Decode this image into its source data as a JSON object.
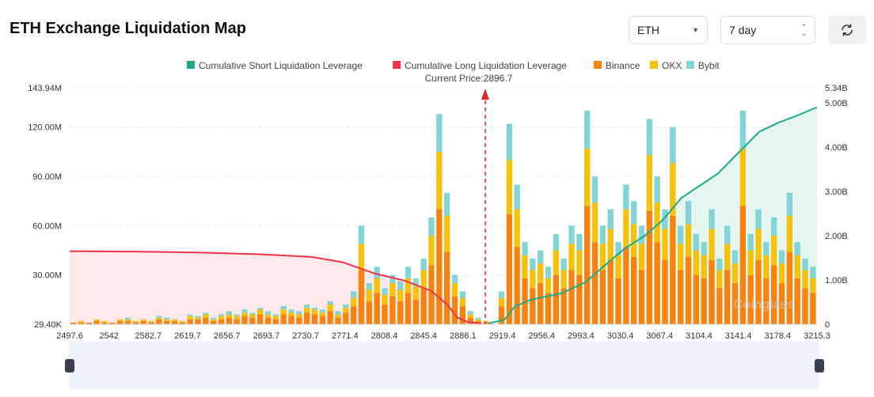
{
  "header": {
    "title": "ETH Exchange Liquidation Map",
    "coin_select": "ETH",
    "range_select": "7 day",
    "refresh_icon": "refresh-icon"
  },
  "chart_data": {
    "type": "bar",
    "legend": [
      "Cumulative Short Liquidation Leverage",
      "Cumulative Long Liquidation Leverage",
      "Binance",
      "OKX",
      "Bybit"
    ],
    "legend_position": "top",
    "colors": {
      "short": "#1fa98a",
      "long": "#f0334a",
      "binance": "#f7820d",
      "okx": "#f5c10b",
      "bybit": "#83d4d6"
    },
    "annotation": "Current Price:2896.7",
    "current_price": 2896.7,
    "x_ticks": [
      "2497.6",
      "2542",
      "2582.7",
      "2619.7",
      "2656.7",
      "2693.7",
      "2730.7",
      "2771.4",
      "2808.4",
      "2845.4",
      "2886.1",
      "2919.4",
      "2956.4",
      "2993.4",
      "3030.4",
      "3067.4",
      "3104.4",
      "3141.4",
      "3178.4",
      "3215.3"
    ],
    "xlim": [
      2497.6,
      3215.3
    ],
    "left_ticks": [
      "29.40K",
      "30.00M",
      "60.00M",
      "90.00M",
      "120.00M",
      "143.94M"
    ],
    "left_tick_values": [
      0,
      30,
      60,
      90,
      120,
      143.94
    ],
    "right_ticks": [
      "0",
      "1.00B",
      "2.00B",
      "3.00B",
      "4.00B",
      "5.00B",
      "5.34B"
    ],
    "right_tick_values": [
      0,
      1,
      2,
      3,
      4,
      5,
      5.34
    ],
    "binance": [
      1,
      1,
      1,
      2,
      1,
      1,
      2,
      2,
      1,
      2,
      1,
      3,
      2,
      2,
      1,
      3,
      3,
      4,
      2,
      3,
      4,
      3,
      5,
      4,
      6,
      4,
      3,
      6,
      5,
      4,
      7,
      6,
      5,
      8,
      4,
      7,
      11,
      33,
      14,
      19,
      12,
      17,
      14,
      19,
      15,
      22,
      36,
      70,
      44,
      17,
      11,
      4,
      2,
      1,
      0,
      11,
      67,
      47,
      28,
      22,
      25,
      19,
      30,
      22,
      33,
      30,
      72,
      50,
      33,
      39,
      28,
      47,
      41,
      33,
      69,
      50,
      39,
      66,
      33,
      41,
      30,
      28,
      39,
      22,
      33,
      25,
      72,
      30,
      39,
      28,
      36,
      25,
      44,
      28,
      22,
      19
    ],
    "okx": [
      0,
      1,
      0,
      1,
      1,
      0,
      1,
      1,
      1,
      1,
      1,
      1,
      1,
      1,
      1,
      2,
      1,
      2,
      1,
      2,
      2,
      2,
      2,
      2,
      3,
      2,
      2,
      3,
      2,
      2,
      3,
      3,
      2,
      4,
      2,
      3,
      5,
      16,
      7,
      9,
      6,
      8,
      7,
      9,
      8,
      11,
      18,
      35,
      22,
      8,
      5,
      2,
      1,
      1,
      0,
      5,
      33,
      23,
      14,
      11,
      12,
      9,
      15,
      11,
      16,
      15,
      35,
      24,
      16,
      19,
      14,
      23,
      20,
      16,
      34,
      24,
      19,
      32,
      16,
      20,
      15,
      14,
      19,
      11,
      16,
      12,
      35,
      15,
      19,
      14,
      18,
      12,
      22,
      14,
      11,
      9
    ],
    "bybit": [
      0,
      0,
      0,
      0,
      0,
      0,
      0,
      1,
      0,
      0,
      0,
      1,
      1,
      0,
      0,
      1,
      1,
      1,
      1,
      1,
      2,
      1,
      2,
      1,
      1,
      2,
      1,
      2,
      2,
      2,
      2,
      1,
      2,
      2,
      2,
      2,
      4,
      11,
      4,
      7,
      4,
      5,
      5,
      7,
      5,
      7,
      11,
      23,
      14,
      5,
      4,
      2,
      1,
      0,
      0,
      4,
      22,
      15,
      8,
      7,
      8,
      7,
      10,
      7,
      11,
      10,
      23,
      16,
      11,
      12,
      8,
      15,
      14,
      11,
      22,
      16,
      12,
      22,
      11,
      14,
      10,
      8,
      12,
      7,
      11,
      8,
      23,
      10,
      12,
      8,
      11,
      8,
      14,
      8,
      7,
      7
    ],
    "bar_unit": "M",
    "long_cumulative": [
      [
        2497.6,
        1.65
      ],
      [
        2560,
        1.64
      ],
      [
        2620,
        1.62
      ],
      [
        2680,
        1.58
      ],
      [
        2730,
        1.52
      ],
      [
        2760,
        1.4
      ],
      [
        2790,
        1.15
      ],
      [
        2820,
        0.98
      ],
      [
        2845,
        0.75
      ],
      [
        2860,
        0.45
      ],
      [
        2870,
        0.15
      ],
      [
        2880,
        0.05
      ],
      [
        2893,
        0.02
      ]
    ],
    "short_cumulative": [
      [
        2900,
        0.02
      ],
      [
        2915,
        0.1
      ],
      [
        2925,
        0.4
      ],
      [
        2940,
        0.55
      ],
      [
        2970,
        0.7
      ],
      [
        2993,
        0.95
      ],
      [
        3010,
        1.3
      ],
      [
        3030,
        1.7
      ],
      [
        3050,
        2.0
      ],
      [
        3067,
        2.35
      ],
      [
        3085,
        2.85
      ],
      [
        3104,
        3.15
      ],
      [
        3120,
        3.4
      ],
      [
        3141,
        3.9
      ],
      [
        3160,
        4.35
      ],
      [
        3178,
        4.55
      ],
      [
        3195,
        4.7
      ],
      [
        3215.3,
        4.9
      ]
    ],
    "line_unit": "B",
    "grid": true
  },
  "watermark": "Coinglass"
}
